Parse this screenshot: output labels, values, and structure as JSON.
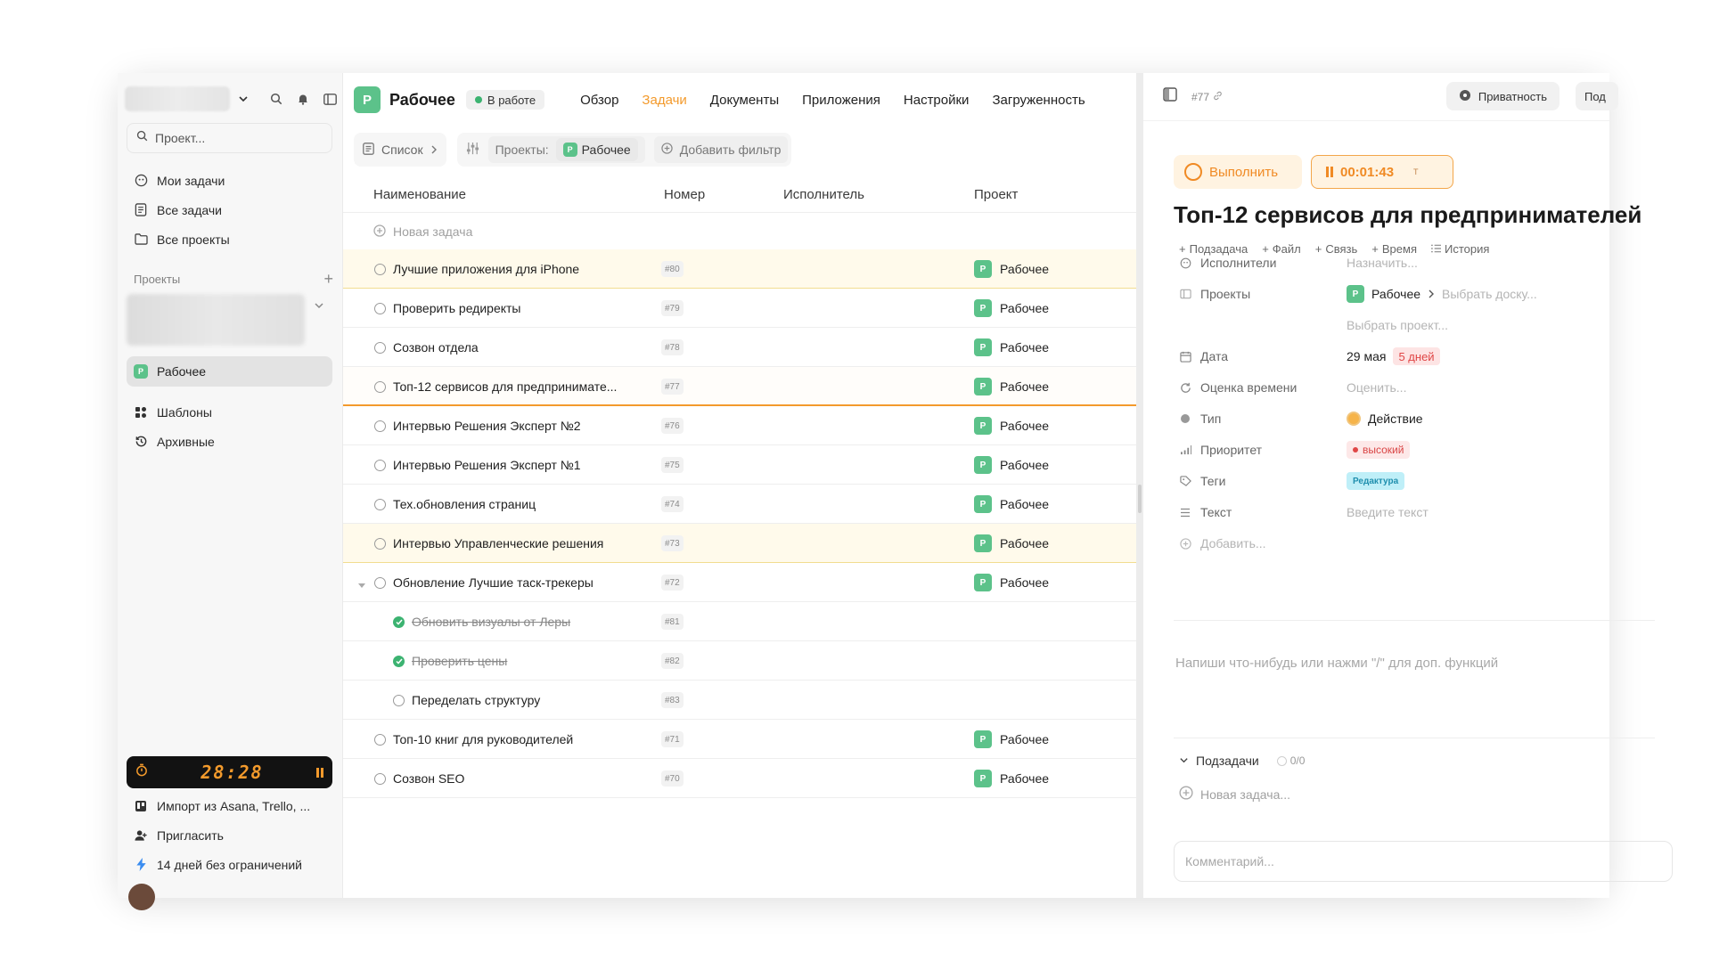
{
  "sidebar": {
    "search_placeholder": "Проект...",
    "nav": [
      {
        "label": "Мои задачи",
        "icon": "user-circle-icon"
      },
      {
        "label": "Все задачи",
        "icon": "task-list-icon"
      },
      {
        "label": "Все проекты",
        "icon": "folder-icon"
      }
    ],
    "projects_header": "Проекты",
    "active_project": {
      "badge": "P",
      "label": "Рабочее"
    },
    "nav2": [
      {
        "label": "Шаблоны",
        "icon": "templates-icon"
      },
      {
        "label": "Архивные",
        "icon": "history-icon"
      }
    ],
    "timer": "28:28",
    "nav3": [
      {
        "label": "Импорт из Asana, Trello, ...",
        "icon": "import-icon"
      },
      {
        "label": "Пригласить",
        "icon": "invite-user-icon"
      },
      {
        "label": "14 дней без ограничений",
        "icon": "lightning-icon"
      }
    ]
  },
  "header": {
    "badge": "P",
    "title": "Рабочее",
    "status": "В работе",
    "tabs": [
      "Обзор",
      "Задачи",
      "Документы",
      "Приложения",
      "Настройки",
      "Загруженность"
    ],
    "active_tab": "Задачи"
  },
  "filters": {
    "view": "Список",
    "projects_label": "Проекты:",
    "projects_value": "Рабочее",
    "add_filter": "Добавить фильтр"
  },
  "table": {
    "columns": [
      "Наименование",
      "Номер",
      "Исполнитель",
      "Проект"
    ],
    "new_task": "Новая задача",
    "rows": [
      {
        "name": "Лучшие приложения для iPhone",
        "num": "#80",
        "project": "Рабочее",
        "state": "open",
        "style": "hl"
      },
      {
        "name": "Проверить редиректы",
        "num": "#79",
        "project": "Рабочее",
        "state": "open",
        "style": ""
      },
      {
        "name": "Созвон отдела",
        "num": "#78",
        "project": "Рабочее",
        "state": "open",
        "style": ""
      },
      {
        "name": "Топ-12 сервисов для предпринимате...",
        "num": "#77",
        "project": "Рабочее",
        "state": "open",
        "style": "sel"
      },
      {
        "name": "Интервью Решения Эксперт №2",
        "num": "#76",
        "project": "Рабочее",
        "state": "open",
        "style": ""
      },
      {
        "name": "Интервью Решения Эксперт №1",
        "num": "#75",
        "project": "Рабочее",
        "state": "open",
        "style": ""
      },
      {
        "name": "Тех.обновления страниц",
        "num": "#74",
        "project": "Рабочее",
        "state": "open",
        "style": ""
      },
      {
        "name": "Интервью Управленческие решения",
        "num": "#73",
        "project": "Рабочее",
        "state": "open",
        "style": "hl"
      },
      {
        "name": "Обновление Лучшие таск-трекеры",
        "num": "#72",
        "project": "Рабочее",
        "state": "open",
        "style": "",
        "expanded": true
      },
      {
        "name": "Обновить визуалы от Леры",
        "num": "#81",
        "project": "",
        "state": "done",
        "style": "",
        "sub": true
      },
      {
        "name": "Проверить цены",
        "num": "#82",
        "project": "",
        "state": "done",
        "style": "",
        "sub": true
      },
      {
        "name": "Переделать структуру",
        "num": "#83",
        "project": "",
        "state": "open",
        "style": "",
        "sub": true
      },
      {
        "name": "Топ-10 книг для руководителей",
        "num": "#71",
        "project": "Рабочее",
        "state": "open",
        "style": ""
      },
      {
        "name": "Созвон SEO",
        "num": "#70",
        "project": "Рабочее",
        "state": "open",
        "style": ""
      }
    ]
  },
  "detail": {
    "task_number": "#77",
    "privacy": "Приватность",
    "more": "Под",
    "complete": "Выполнить",
    "timer": "00:01:43",
    "timer_suffix": "Т",
    "title": "Топ-12 сервисов для предпринимателей",
    "actions": [
      {
        "label": "Подзадача"
      },
      {
        "label": "Файл"
      },
      {
        "label": "Связь"
      },
      {
        "label": "Время"
      },
      {
        "label": "История"
      }
    ],
    "props": {
      "assignees": {
        "label": "Исполнители",
        "placeholder": "Назначить..."
      },
      "projects": {
        "label": "Проекты",
        "badge": "P",
        "value": "Рабочее",
        "board": "Выбрать доску...",
        "choose": "Выбрать проект..."
      },
      "date": {
        "label": "Дата",
        "value": "29 мая",
        "overdue": "5 дней"
      },
      "estimate": {
        "label": "Оценка времени",
        "placeholder": "Оценить..."
      },
      "type": {
        "label": "Тип",
        "value": "Действие"
      },
      "priority": {
        "label": "Приоритет",
        "value": "высокий"
      },
      "tags": {
        "label": "Теги",
        "value": "Редактура"
      },
      "text": {
        "label": "Текст",
        "placeholder": "Введите текст"
      },
      "add": {
        "label": "Добавить..."
      }
    },
    "editor_placeholder": "Напиши что-нибудь или нажми \"/\" для доп. функций",
    "subtasks_label": "Подзадачи",
    "subtasks_count": "0/0",
    "new_subtask": "Новая задача...",
    "comment_placeholder": "Комментарий..."
  },
  "colors": {
    "accent": "#f39a2c",
    "project_green": "#5cc28a",
    "danger": "#e04646"
  }
}
